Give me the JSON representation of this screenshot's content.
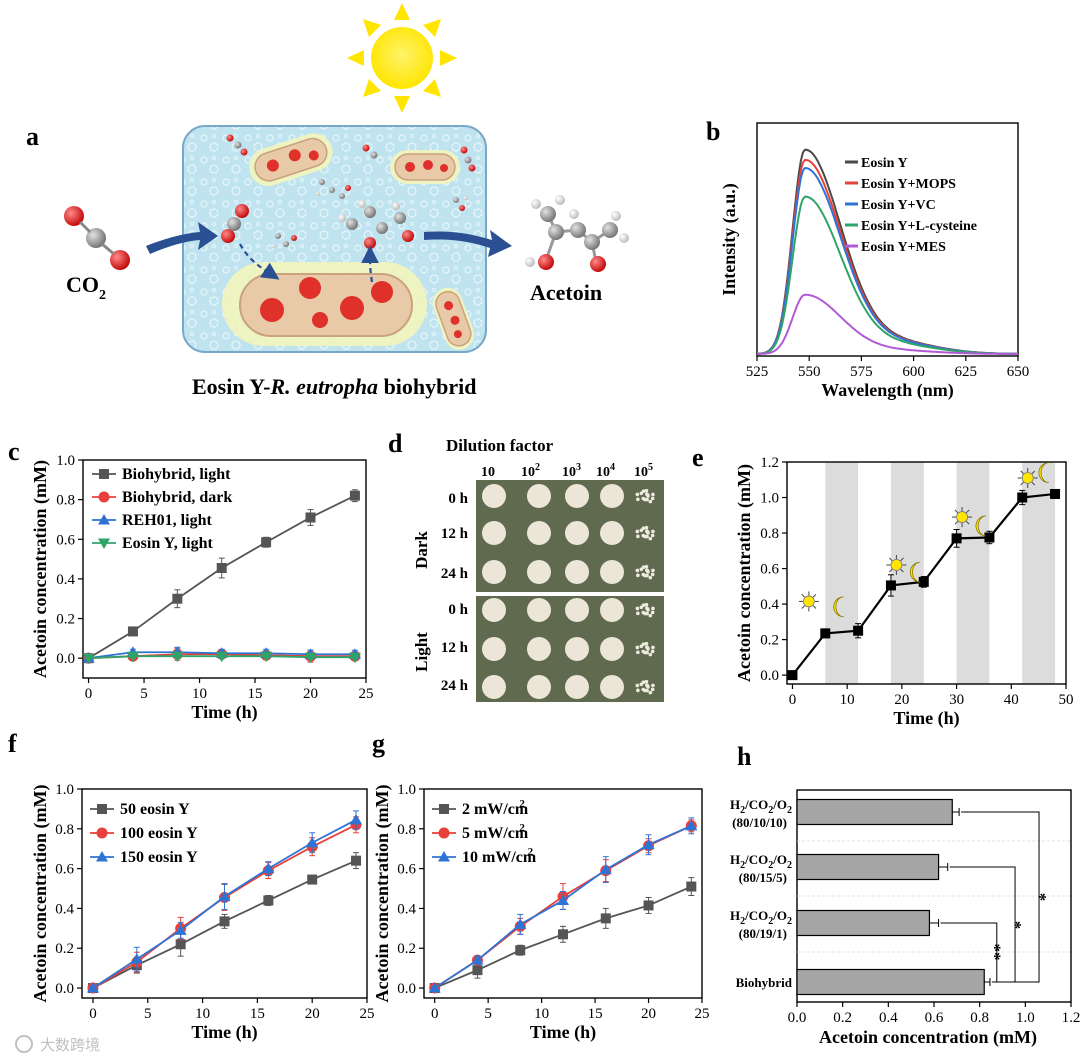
{
  "panel_labels": [
    "a",
    "b",
    "c",
    "d",
    "e",
    "f",
    "g",
    "h"
  ],
  "schematic": {
    "co2": "CO",
    "co2_sub": "2",
    "product": "Acetoin",
    "caption_prefix": "Eosin Y-",
    "caption_italic": "R. eutropha",
    "caption_suffix": " biohybrid"
  },
  "plate": {
    "title": "Dilution factor",
    "columns": [
      "10",
      "10",
      "10",
      "10",
      "10"
    ],
    "column_exps": [
      "",
      "2",
      "3",
      "4",
      "5"
    ],
    "groups": [
      "Dark",
      "Light"
    ],
    "times": [
      "0 h",
      "12 h",
      "24 h"
    ]
  },
  "watermark": "大数跨境",
  "chart_data": [
    {
      "id": "b",
      "type": "line",
      "title": "",
      "xlabel": "Wavelength (nm)",
      "ylabel": "Intensity (a.u.)",
      "xlim": [
        525,
        650
      ],
      "xticks": [
        "525",
        "550",
        "575",
        "600",
        "625",
        "650"
      ],
      "yticks": [],
      "peak_x": 548,
      "series": [
        {
          "name": "Eosin Y",
          "color": "#4a4a4a",
          "peak": 1.0
        },
        {
          "name": "Eosin Y+MOPS",
          "color": "#e8403a",
          "peak": 0.95
        },
        {
          "name": "Eosin Y+VC",
          "color": "#2f73d4",
          "peak": 0.91
        },
        {
          "name": "Eosin Y+L-cysteine",
          "color": "#2fa468",
          "peak": 0.77
        },
        {
          "name": "Eosin Y+MES",
          "color": "#b05ad6",
          "peak": 0.29
        }
      ]
    },
    {
      "id": "c",
      "type": "line",
      "xlabel": "Time (h)",
      "ylabel": "Acetoin concentration (mM)",
      "xlim": [
        -0.5,
        25
      ],
      "ylim": [
        -0.1,
        1.0
      ],
      "xticks": [
        "0",
        "5",
        "10",
        "15",
        "20",
        "25"
      ],
      "yticks": [
        "0.0",
        "0.2",
        "0.4",
        "0.6",
        "0.8",
        "1.0"
      ],
      "x": [
        0,
        4,
        8,
        12,
        16,
        20,
        24
      ],
      "series": [
        {
          "name": "Biohybrid, light",
          "color": "#555555",
          "marker": "square",
          "values": [
            0,
            0.135,
            0.3,
            0.455,
            0.585,
            0.71,
            0.82
          ],
          "errors": [
            0.01,
            0.02,
            0.045,
            0.05,
            0.025,
            0.04,
            0.03
          ]
        },
        {
          "name": "Biohybrid, dark",
          "color": "#e8403a",
          "marker": "circle",
          "values": [
            0,
            0.01,
            0.02,
            0.02,
            0.015,
            0.01,
            0.01
          ],
          "errors": [
            0.01,
            0.02,
            0.03,
            0.02,
            0.02,
            0.03,
            0.02
          ]
        },
        {
          "name": "REH01, light",
          "color": "#2f73d4",
          "marker": "triangle",
          "values": [
            0,
            0.03,
            0.03,
            0.025,
            0.025,
            0.02,
            0.02
          ],
          "errors": [
            0.01,
            0.015,
            0.025,
            0.02,
            0.02,
            0.02,
            0.02
          ]
        },
        {
          "name": "Eosin Y, light",
          "color": "#2fa468",
          "marker": "triangle-down",
          "values": [
            0,
            0.01,
            0.01,
            0.01,
            0.01,
            0.005,
            0.005
          ],
          "errors": [
            0.005,
            0.01,
            0.01,
            0.01,
            0.01,
            0.01,
            0.01
          ]
        }
      ]
    },
    {
      "id": "e",
      "type": "line",
      "xlabel": "Time (h)",
      "ylabel": "Acetoin concentration (mM)",
      "xlim": [
        -1,
        50
      ],
      "ylim": [
        -0.05,
        1.2
      ],
      "xticks": [
        "0",
        "10",
        "20",
        "30",
        "40",
        "50"
      ],
      "yticks": [
        "0.0",
        "0.2",
        "0.4",
        "0.6",
        "0.8",
        "1.0",
        "1.2"
      ],
      "dark_intervals": [
        [
          6,
          12
        ],
        [
          18,
          24
        ],
        [
          30,
          36
        ],
        [
          42,
          48
        ]
      ],
      "x": [
        0,
        6,
        12,
        18,
        24,
        30,
        36,
        42,
        48
      ],
      "series": [
        {
          "name": "Biohybrid",
          "color": "#000000",
          "marker": "square",
          "values": [
            0,
            0.235,
            0.25,
            0.505,
            0.525,
            0.77,
            0.775,
            1.0,
            1.02
          ],
          "errors": [
            0.01,
            0.025,
            0.04,
            0.06,
            0.03,
            0.05,
            0.035,
            0.04,
            0.025
          ]
        }
      ]
    },
    {
      "id": "f",
      "type": "line",
      "xlabel": "Time (h)",
      "ylabel": "Acetoin concentration (mM)",
      "xlim": [
        -1,
        25
      ],
      "ylim": [
        -0.05,
        1.0
      ],
      "xticks": [
        "0",
        "5",
        "10",
        "15",
        "20",
        "25"
      ],
      "yticks": [
        "0.0",
        "0.2",
        "0.4",
        "0.6",
        "0.8",
        "1.0"
      ],
      "x": [
        0,
        4,
        8,
        12,
        16,
        20,
        24
      ],
      "series": [
        {
          "name": "50 eosin Y",
          "color": "#555555",
          "marker": "square",
          "values": [
            0,
            0.115,
            0.22,
            0.335,
            0.44,
            0.545,
            0.64
          ],
          "errors": [
            0.01,
            0.04,
            0.06,
            0.035,
            0.025,
            0.015,
            0.04
          ]
        },
        {
          "name": "100 eosin Y",
          "color": "#e8403a",
          "marker": "circle",
          "values": [
            0,
            0.13,
            0.3,
            0.455,
            0.59,
            0.71,
            0.82
          ],
          "errors": [
            0.01,
            0.05,
            0.055,
            0.065,
            0.04,
            0.045,
            0.04
          ]
        },
        {
          "name": "150 eosin Y",
          "color": "#2f73d4",
          "marker": "triangle",
          "values": [
            0,
            0.145,
            0.29,
            0.46,
            0.6,
            0.73,
            0.845
          ],
          "errors": [
            0.01,
            0.06,
            0.04,
            0.065,
            0.035,
            0.05,
            0.045
          ]
        }
      ]
    },
    {
      "id": "g",
      "type": "line",
      "xlabel": "Time (h)",
      "ylabel": "Acetoin concentration (mM)",
      "xlim": [
        -1,
        25
      ],
      "ylim": [
        -0.05,
        1.0
      ],
      "xticks": [
        "0",
        "5",
        "10",
        "15",
        "20",
        "25"
      ],
      "yticks": [
        "0.0",
        "0.2",
        "0.4",
        "0.6",
        "0.8",
        "1.0"
      ],
      "x": [
        0,
        4,
        8,
        12,
        16,
        20,
        24
      ],
      "series": [
        {
          "name": "2 mW/cm",
          "sup": "2",
          "color": "#555555",
          "marker": "square",
          "values": [
            0,
            0.09,
            0.19,
            0.27,
            0.35,
            0.415,
            0.51
          ],
          "errors": [
            0.01,
            0.04,
            0.025,
            0.04,
            0.05,
            0.04,
            0.045
          ]
        },
        {
          "name": "5 mW/cm",
          "sup": "2",
          "color": "#e8403a",
          "marker": "circle",
          "values": [
            0,
            0.14,
            0.31,
            0.46,
            0.59,
            0.715,
            0.815
          ],
          "errors": [
            0.01,
            0.02,
            0.04,
            0.065,
            0.055,
            0.035,
            0.03
          ]
        },
        {
          "name": "10 mW/cm",
          "sup": "2",
          "color": "#2f73d4",
          "marker": "triangle",
          "values": [
            0,
            0.14,
            0.32,
            0.44,
            0.595,
            0.72,
            0.815
          ],
          "errors": [
            0.01,
            0.02,
            0.05,
            0.045,
            0.065,
            0.05,
            0.04
          ]
        }
      ]
    },
    {
      "id": "h",
      "type": "bar",
      "orientation": "horizontal",
      "xlabel": "Acetoin concentration (mM)",
      "xlim": [
        0,
        1.2
      ],
      "xticks": [
        "0.0",
        "0.2",
        "0.4",
        "0.6",
        "0.8",
        "1.0",
        "1.2"
      ],
      "bar_color": "#a6a6a6",
      "categories": [
        {
          "label": "H2/CO2/O2",
          "sub": "(80/10/10)"
        },
        {
          "label": "H2/CO2/O2",
          "sub": "(80/15/5)"
        },
        {
          "label": "H2/CO2/O2",
          "sub": "(80/19/1)"
        },
        {
          "label": "Biohybrid",
          "sub": ""
        }
      ],
      "values": [
        0.68,
        0.62,
        0.58,
        0.82
      ],
      "errors": [
        0.03,
        0.04,
        0.04,
        0.025
      ],
      "significance": [
        "*",
        "*",
        "**"
      ]
    }
  ]
}
